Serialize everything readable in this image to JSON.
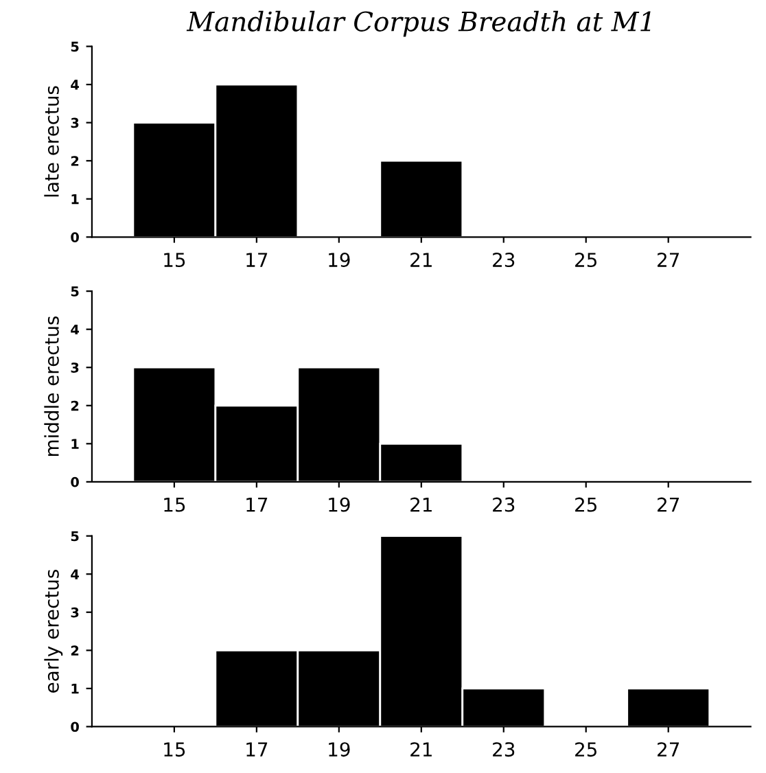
{
  "chart_data": [
    {
      "type": "histogram",
      "title": "Mandibular Corpus Breadth at M1",
      "ylabel": "late erectus",
      "bins": [
        14,
        16,
        18,
        20,
        22,
        24,
        26,
        28
      ],
      "values": [
        3,
        4,
        0,
        2,
        0,
        0,
        0
      ],
      "color": "#000000",
      "xlim": [
        13,
        29
      ],
      "xticks": [
        15,
        17,
        19,
        21,
        23,
        25,
        27
      ],
      "ylim": [
        0,
        5
      ],
      "yticks": [
        0,
        1,
        2,
        3,
        4,
        5
      ],
      "grid": false,
      "legend": false
    },
    {
      "type": "histogram",
      "ylabel": "middle erectus",
      "bins": [
        14,
        16,
        18,
        20,
        22,
        24,
        26,
        28
      ],
      "values": [
        3,
        2,
        3,
        1,
        0,
        0,
        0
      ],
      "color": "#000000",
      "xlim": [
        13,
        29
      ],
      "xticks": [
        15,
        17,
        19,
        21,
        23,
        25,
        27
      ],
      "ylim": [
        0,
        5
      ],
      "yticks": [
        0,
        1,
        2,
        3,
        4,
        5
      ],
      "grid": false,
      "legend": false
    },
    {
      "type": "histogram",
      "ylabel": "early erectus",
      "bins": [
        14,
        16,
        18,
        20,
        22,
        24,
        26,
        28
      ],
      "values": [
        0,
        2,
        2,
        5,
        1,
        0,
        1
      ],
      "color": "#000000",
      "xlim": [
        13,
        29
      ],
      "xticks": [
        15,
        17,
        19,
        21,
        23,
        25,
        27
      ],
      "ylim": [
        0,
        5
      ],
      "yticks": [
        0,
        1,
        2,
        3,
        4,
        5
      ],
      "grid": false,
      "legend": false
    }
  ]
}
